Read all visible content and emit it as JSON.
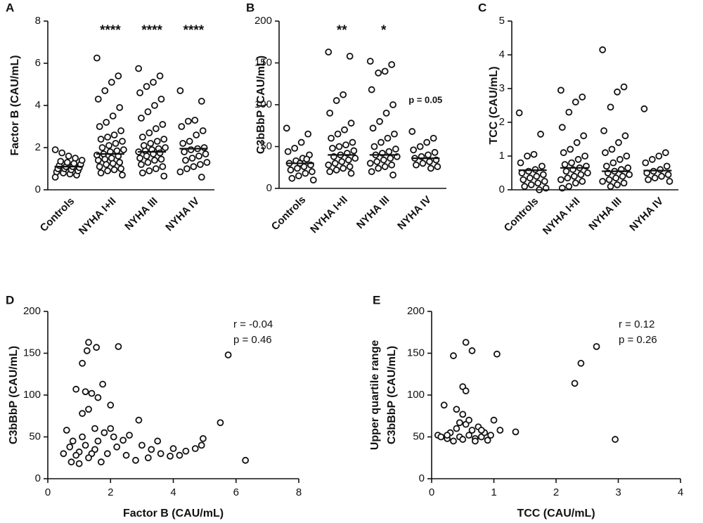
{
  "chart_data": [
    {
      "type": "strip",
      "panel": "A",
      "y_label": "Factor B (CAU/mL)",
      "categories": [
        "Controls",
        "NYHA I+II",
        "NYHA III",
        "NYHA IV"
      ],
      "values": [
        [
          0.6,
          0.7,
          0.75,
          0.8,
          0.85,
          0.9,
          0.95,
          1.0,
          1.0,
          1.05,
          1.1,
          1.1,
          1.15,
          1.2,
          1.25,
          1.3,
          1.35,
          1.4,
          1.5,
          1.6,
          1.75,
          1.9
        ],
        [
          6.25,
          5.4,
          5.1,
          4.7,
          4.3,
          3.9,
          3.5,
          3.2,
          3.0,
          2.8,
          2.6,
          2.5,
          2.4,
          2.3,
          2.2,
          2.1,
          2.0,
          1.9,
          1.85,
          1.8,
          1.7,
          1.65,
          1.6,
          1.5,
          1.45,
          1.4,
          1.3,
          1.25,
          1.2,
          1.1,
          1.0,
          0.95,
          0.9,
          0.8,
          0.7
        ],
        [
          5.75,
          5.4,
          5.1,
          4.9,
          4.6,
          4.3,
          4.0,
          3.7,
          3.4,
          3.1,
          2.9,
          2.7,
          2.5,
          2.4,
          2.3,
          2.2,
          2.1,
          2.0,
          1.95,
          1.9,
          1.85,
          1.8,
          1.75,
          1.7,
          1.6,
          1.5,
          1.45,
          1.4,
          1.3,
          1.2,
          1.1,
          1.0,
          0.9,
          0.8,
          0.65
        ],
        [
          4.7,
          4.2,
          3.3,
          3.25,
          3.0,
          2.8,
          2.6,
          2.3,
          2.2,
          2.0,
          1.95,
          1.9,
          1.8,
          1.7,
          1.6,
          1.5,
          1.4,
          1.3,
          1.2,
          1.1,
          1.0,
          0.85,
          0.6
        ]
      ],
      "medians": [
        1.1,
        1.7,
        1.8,
        1.95
      ],
      "annotations": [
        null,
        "****",
        "****",
        "****"
      ],
      "ylim": [
        0,
        8
      ],
      "yticks": [
        0,
        2,
        4,
        6,
        8
      ]
    },
    {
      "type": "strip",
      "panel": "B",
      "y_label": "C3bBbP (CAU/mL)",
      "categories": [
        "Controls",
        "NYHA I+II",
        "NYHA III",
        "NYHA IV"
      ],
      "values": [
        [
          72,
          65,
          55,
          48,
          44,
          40,
          36,
          33,
          30,
          28,
          26,
          24,
          22,
          20,
          18,
          15,
          12,
          10,
          35,
          30
        ],
        [
          163,
          158,
          112,
          105,
          90,
          78,
          70,
          65,
          60,
          55,
          52,
          50,
          48,
          45,
          42,
          40,
          38,
          36,
          34,
          32,
          30,
          28,
          26,
          24,
          22,
          20,
          18
        ],
        [
          152,
          148,
          140,
          138,
          118,
          100,
          90,
          80,
          72,
          65,
          60,
          55,
          50,
          47,
          44,
          42,
          40,
          38,
          36,
          34,
          32,
          30,
          28,
          26,
          24,
          20,
          16
        ],
        [
          68,
          60,
          55,
          50,
          46,
          43,
          40,
          38,
          36,
          34,
          32,
          30,
          28,
          26,
          24
        ]
      ],
      "medians": [
        30,
        40,
        40,
        36
      ],
      "annotations": [
        null,
        "**",
        "*",
        "p = 0.05"
      ],
      "ylim": [
        0,
        200
      ],
      "yticks": [
        0,
        50,
        100,
        150,
        200
      ]
    },
    {
      "type": "strip",
      "panel": "C",
      "y_label": "TCC (CAU/mL)",
      "categories": [
        "Controls",
        "NYHA I+II",
        "NYHA III",
        "NYHA IV"
      ],
      "values": [
        [
          2.28,
          1.65,
          1.05,
          1.0,
          0.8,
          0.7,
          0.6,
          0.55,
          0.5,
          0.45,
          0.4,
          0.35,
          0.3,
          0.25,
          0.2,
          0.15,
          0.1,
          0.05,
          0.0
        ],
        [
          2.95,
          2.75,
          2.6,
          2.3,
          1.85,
          1.6,
          1.4,
          1.2,
          1.1,
          1.0,
          0.9,
          0.8,
          0.75,
          0.7,
          0.65,
          0.6,
          0.55,
          0.5,
          0.45,
          0.4,
          0.35,
          0.3,
          0.25,
          0.2,
          0.1,
          0.05
        ],
        [
          4.15,
          3.05,
          2.9,
          2.45,
          1.75,
          1.6,
          1.4,
          1.2,
          1.1,
          1.0,
          0.9,
          0.8,
          0.7,
          0.65,
          0.6,
          0.55,
          0.5,
          0.45,
          0.4,
          0.35,
          0.3,
          0.25,
          0.2,
          0.15,
          0.1
        ],
        [
          2.4,
          1.1,
          1.0,
          0.9,
          0.8,
          0.7,
          0.6,
          0.55,
          0.5,
          0.45,
          0.4,
          0.35,
          0.3,
          0.25
        ]
      ],
      "medians": [
        0.58,
        0.65,
        0.55,
        0.57
      ],
      "annotations": [
        null,
        null,
        null,
        null
      ],
      "ylim": [
        0,
        5
      ],
      "yticks": [
        0,
        1,
        2,
        3,
        4,
        5
      ]
    },
    {
      "type": "scatter",
      "panel": "D",
      "x_label": "Factor B (CAU/mL)",
      "y_label": [
        "C3bBbP (CAU/mL)"
      ],
      "stats": [
        "r = -0.04",
        "p = 0.46"
      ],
      "x": [
        1.3,
        1.25,
        1.55,
        2.25,
        1.1,
        1.75,
        5.75,
        0.9,
        1.2,
        1.4,
        1.6,
        2.0,
        1.3,
        1.1,
        5.5,
        6.3,
        4.95,
        4.9,
        4.7,
        4.4,
        4.2,
        3.9,
        3.6,
        3.3,
        3.0,
        2.9,
        2.6,
        2.4,
        2.2,
        2.0,
        1.8,
        1.6,
        1.5,
        1.4,
        1.3,
        1.2,
        1.1,
        1.0,
        0.9,
        0.8,
        0.7,
        0.6,
        0.5,
        1.7,
        1.9,
        2.5,
        3.5,
        4.0,
        2.8,
        1.0,
        1.5,
        2.1,
        3.2,
        0.75
      ],
      "y": [
        163,
        153,
        157,
        158,
        138,
        113,
        148,
        107,
        104,
        102,
        97,
        88,
        83,
        78,
        67,
        22,
        48,
        40,
        36,
        33,
        28,
        27,
        30,
        35,
        40,
        70,
        52,
        46,
        38,
        60,
        55,
        45,
        35,
        30,
        25,
        40,
        50,
        32,
        28,
        45,
        38,
        58,
        30,
        20,
        30,
        28,
        45,
        36,
        22,
        18,
        60,
        50,
        25,
        20
      ],
      "xlim": [
        0,
        8
      ],
      "xticks": [
        0,
        2,
        4,
        6,
        8
      ],
      "ylim": [
        0,
        200
      ],
      "yticks": [
        0,
        50,
        100,
        150,
        200
      ]
    },
    {
      "type": "scatter",
      "panel": "E",
      "x_label": "TCC (CAU/mL)",
      "y_label": [
        "Upper quartile range",
        "C3bBbP (CAU/mL)"
      ],
      "stats": [
        "r = 0.12",
        "p = 0.26"
      ],
      "x": [
        0.55,
        0.65,
        0.35,
        0.5,
        0.55,
        1.05,
        0.4,
        0.5,
        0.2,
        2.65,
        2.4,
        2.3,
        2.95,
        1.35,
        1.1,
        1.0,
        0.1,
        0.15,
        0.25,
        0.3,
        0.4,
        0.45,
        0.5,
        0.55,
        0.6,
        0.65,
        0.7,
        0.75,
        0.8,
        0.85,
        0.9,
        0.95,
        0.6,
        0.45,
        0.35,
        0.25,
        0.7,
        0.8
      ],
      "y": [
        163,
        153,
        147,
        110,
        105,
        149,
        83,
        77,
        88,
        158,
        138,
        114,
        47,
        56,
        58,
        70,
        52,
        50,
        48,
        55,
        60,
        50,
        47,
        65,
        52,
        58,
        48,
        62,
        50,
        55,
        46,
        52,
        70,
        67,
        45,
        52,
        45,
        58
      ],
      "xlim": [
        0,
        4
      ],
      "xticks": [
        0,
        1,
        2,
        3,
        4
      ],
      "ylim": [
        0,
        200
      ],
      "yticks": [
        0,
        50,
        100,
        150,
        200
      ]
    }
  ]
}
